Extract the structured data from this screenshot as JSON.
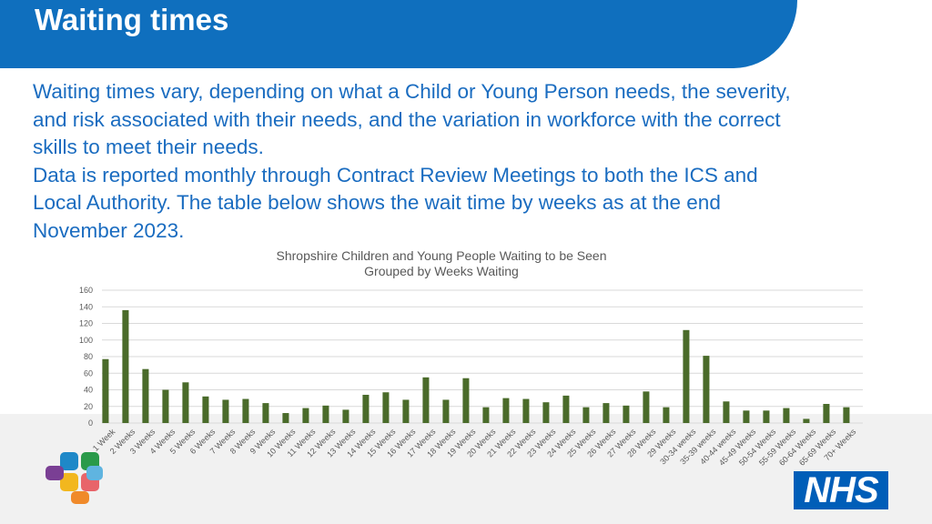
{
  "header": {
    "title": "Waiting times"
  },
  "body": {
    "lines": [
      "Waiting times vary, depending on what a Child or Young Person needs, the severity,",
      "and risk associated with their needs, and the variation in workforce with the correct",
      "skills to meet their needs.",
      "Data is reported monthly through Contract Review Meetings to both the ICS and",
      "Local Authority. The table below shows the wait time by weeks as at the end",
      "November 2023."
    ]
  },
  "logo": {
    "text": "NHS"
  },
  "chart_data": {
    "type": "bar",
    "title": "Shropshire Children and Young People Waiting to be Seen",
    "subtitle": "Grouped by Weeks Waiting",
    "categories": [
      "1 Week",
      "2 Weeks",
      "3 Weeks",
      "4 Weeks",
      "5 Weeks",
      "6 Weeks",
      "7 Weeks",
      "8 Weeks",
      "9 Weeks",
      "10 Weeks",
      "11 Weeks",
      "12 Weeks",
      "13 Weeks",
      "14 Weeks",
      "15 Weeks",
      "16 Weeks",
      "17 Weeks",
      "18 Weeks",
      "19 Weeks",
      "20 Weeks",
      "21 Weeks",
      "22 Weeks",
      "23 Weeks",
      "24 Weeks",
      "25 Weeks",
      "26 Weeks",
      "27 Weeks",
      "28 Weeks",
      "29 Weeks",
      "30-34 weeks",
      "35-39 weeks",
      "40-44 weeks",
      "45-49 Weeks",
      "50-54 Weeks",
      "55-59 Weeks",
      "60-64 Weeks",
      "65-69 Weeks",
      "70+ Weeks"
    ],
    "values": [
      77,
      136,
      65,
      40,
      49,
      32,
      28,
      29,
      24,
      12,
      18,
      21,
      16,
      34,
      37,
      28,
      55,
      28,
      54,
      19,
      30,
      29,
      25,
      33,
      19,
      24,
      21,
      38,
      19,
      112,
      81,
      26,
      15,
      15,
      18,
      5,
      23,
      19
    ],
    "color": "#4a6b2a",
    "ylim": [
      0,
      160
    ],
    "yticks": [
      0,
      20,
      40,
      60,
      80,
      100,
      120,
      140,
      160
    ],
    "grid": true
  }
}
